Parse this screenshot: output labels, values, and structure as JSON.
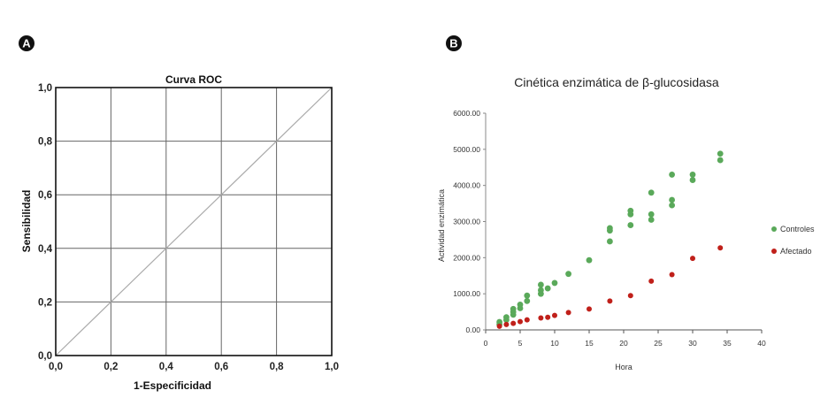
{
  "panel_a": {
    "badge": "A"
  },
  "panel_b": {
    "badge": "B"
  },
  "colors": {
    "controles": "#5aa95a",
    "afectado": "#c0201a",
    "grid": "#666666",
    "diagonal": "#aaaaaa"
  },
  "chart_data": [
    {
      "type": "line",
      "title": "Curva ROC",
      "xlabel": "1-Especificidad",
      "ylabel": "Sensibilidad",
      "xlim": [
        0,
        1
      ],
      "ylim": [
        0,
        1
      ],
      "grid": true,
      "xticks": [
        "0,0",
        "0,2",
        "0,4",
        "0,6",
        "0,8",
        "1,0"
      ],
      "yticks": [
        "0,0",
        "0,2",
        "0,4",
        "0,6",
        "0,8",
        "1,0"
      ],
      "series": [
        {
          "x": [
            0,
            1
          ],
          "y": [
            0,
            1
          ]
        }
      ]
    },
    {
      "type": "scatter",
      "title": "Cinética enzimática de β-glucosidasa",
      "xlabel": "Hora",
      "ylabel": "Actividad enzimática",
      "xlim": [
        0,
        40
      ],
      "ylim": [
        0,
        6000
      ],
      "grid": false,
      "legend_position": "right",
      "xticks": [
        "0",
        "5",
        "10",
        "15",
        "20",
        "25",
        "30",
        "35",
        "40"
      ],
      "yticks": [
        "0.00",
        "1000.00",
        "2000.00",
        "3000.00",
        "4000.00",
        "5000.00",
        "6000.00"
      ],
      "series": [
        {
          "name": "Controles",
          "points": [
            [
              2,
              150
            ],
            [
              2,
              220
            ],
            [
              3,
              280
            ],
            [
              3,
              350
            ],
            [
              4,
              420
            ],
            [
              4,
              500
            ],
            [
              4,
              580
            ],
            [
              5,
              600
            ],
            [
              5,
              700
            ],
            [
              6,
              800
            ],
            [
              6,
              950
            ],
            [
              8,
              1000
            ],
            [
              8,
              1100
            ],
            [
              8,
              1250
            ],
            [
              9,
              1150
            ],
            [
              10,
              1300
            ],
            [
              12,
              1550
            ],
            [
              15,
              1930
            ],
            [
              18,
              2450
            ],
            [
              18,
              2750
            ],
            [
              18,
              2820
            ],
            [
              21,
              2900
            ],
            [
              21,
              3200
            ],
            [
              21,
              3300
            ],
            [
              24,
              3050
            ],
            [
              24,
              3200
            ],
            [
              24,
              3800
            ],
            [
              27,
              3450
            ],
            [
              27,
              3600
            ],
            [
              27,
              4300
            ],
            [
              30,
              4150
            ],
            [
              30,
              4300
            ],
            [
              34,
              4700
            ],
            [
              34,
              4880
            ]
          ]
        },
        {
          "name": "Afectado",
          "points": [
            [
              2,
              100
            ],
            [
              3,
              150
            ],
            [
              4,
              180
            ],
            [
              5,
              230
            ],
            [
              6,
              280
            ],
            [
              8,
              330
            ],
            [
              9,
              350
            ],
            [
              10,
              400
            ],
            [
              12,
              480
            ],
            [
              15,
              580
            ],
            [
              18,
              800
            ],
            [
              21,
              950
            ],
            [
              24,
              1350
            ],
            [
              27,
              1530
            ],
            [
              30,
              1980
            ],
            [
              34,
              2270
            ]
          ]
        }
      ]
    }
  ]
}
